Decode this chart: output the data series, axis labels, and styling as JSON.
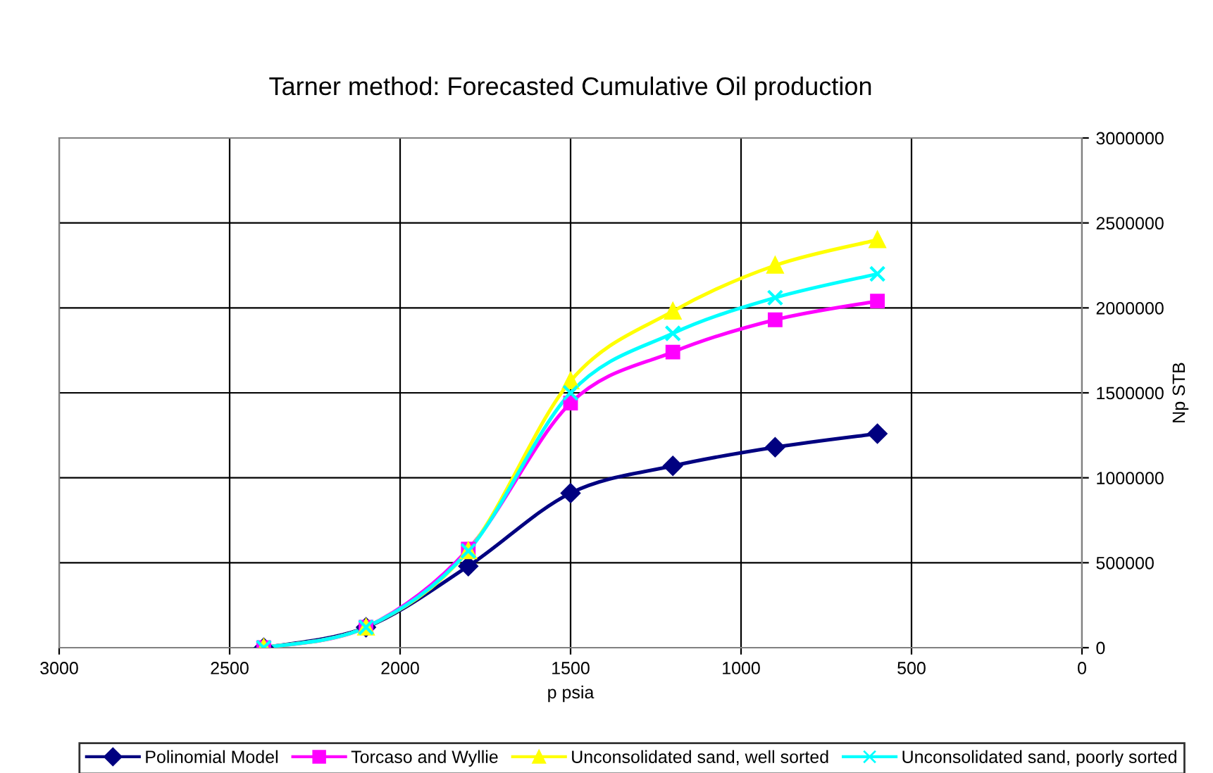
{
  "chart_data": {
    "type": "line",
    "title": "Tarner method: Forecasted Cumulative Oil production",
    "xlabel": "p psia",
    "ylabel": "Np STB",
    "x": [
      2400,
      2100,
      1800,
      1500,
      1200,
      900,
      600
    ],
    "series": [
      {
        "name": "Polinomial Model",
        "color": "#000080",
        "marker": "diamond",
        "values": [
          0,
          120000,
          480000,
          910000,
          1070000,
          1180000,
          1260000
        ]
      },
      {
        "name": "Torcaso and Wyllie",
        "color": "#ff00ff",
        "marker": "square",
        "values": [
          0,
          120000,
          580000,
          1440000,
          1740000,
          1930000,
          2040000
        ]
      },
      {
        "name": "Unconsolidated sand, well sorted",
        "color": "#ffff00",
        "marker": "triangle",
        "values": [
          0,
          120000,
          570000,
          1570000,
          1980000,
          2250000,
          2400000
        ]
      },
      {
        "name": "Unconsolidated sand, poorly sorted",
        "color": "#00ffff",
        "marker": "cross",
        "values": [
          0,
          120000,
          570000,
          1500000,
          1850000,
          2060000,
          2200000
        ]
      }
    ],
    "xlim": [
      3000,
      0
    ],
    "xticks": [
      3000,
      2500,
      2000,
      1500,
      1000,
      500,
      0
    ],
    "ylim": [
      0,
      3000000
    ],
    "yticks": [
      0,
      500000,
      1000000,
      1500000,
      2000000,
      2500000,
      3000000
    ],
    "grid": true,
    "legend": "bottom",
    "line_style": "solid"
  }
}
